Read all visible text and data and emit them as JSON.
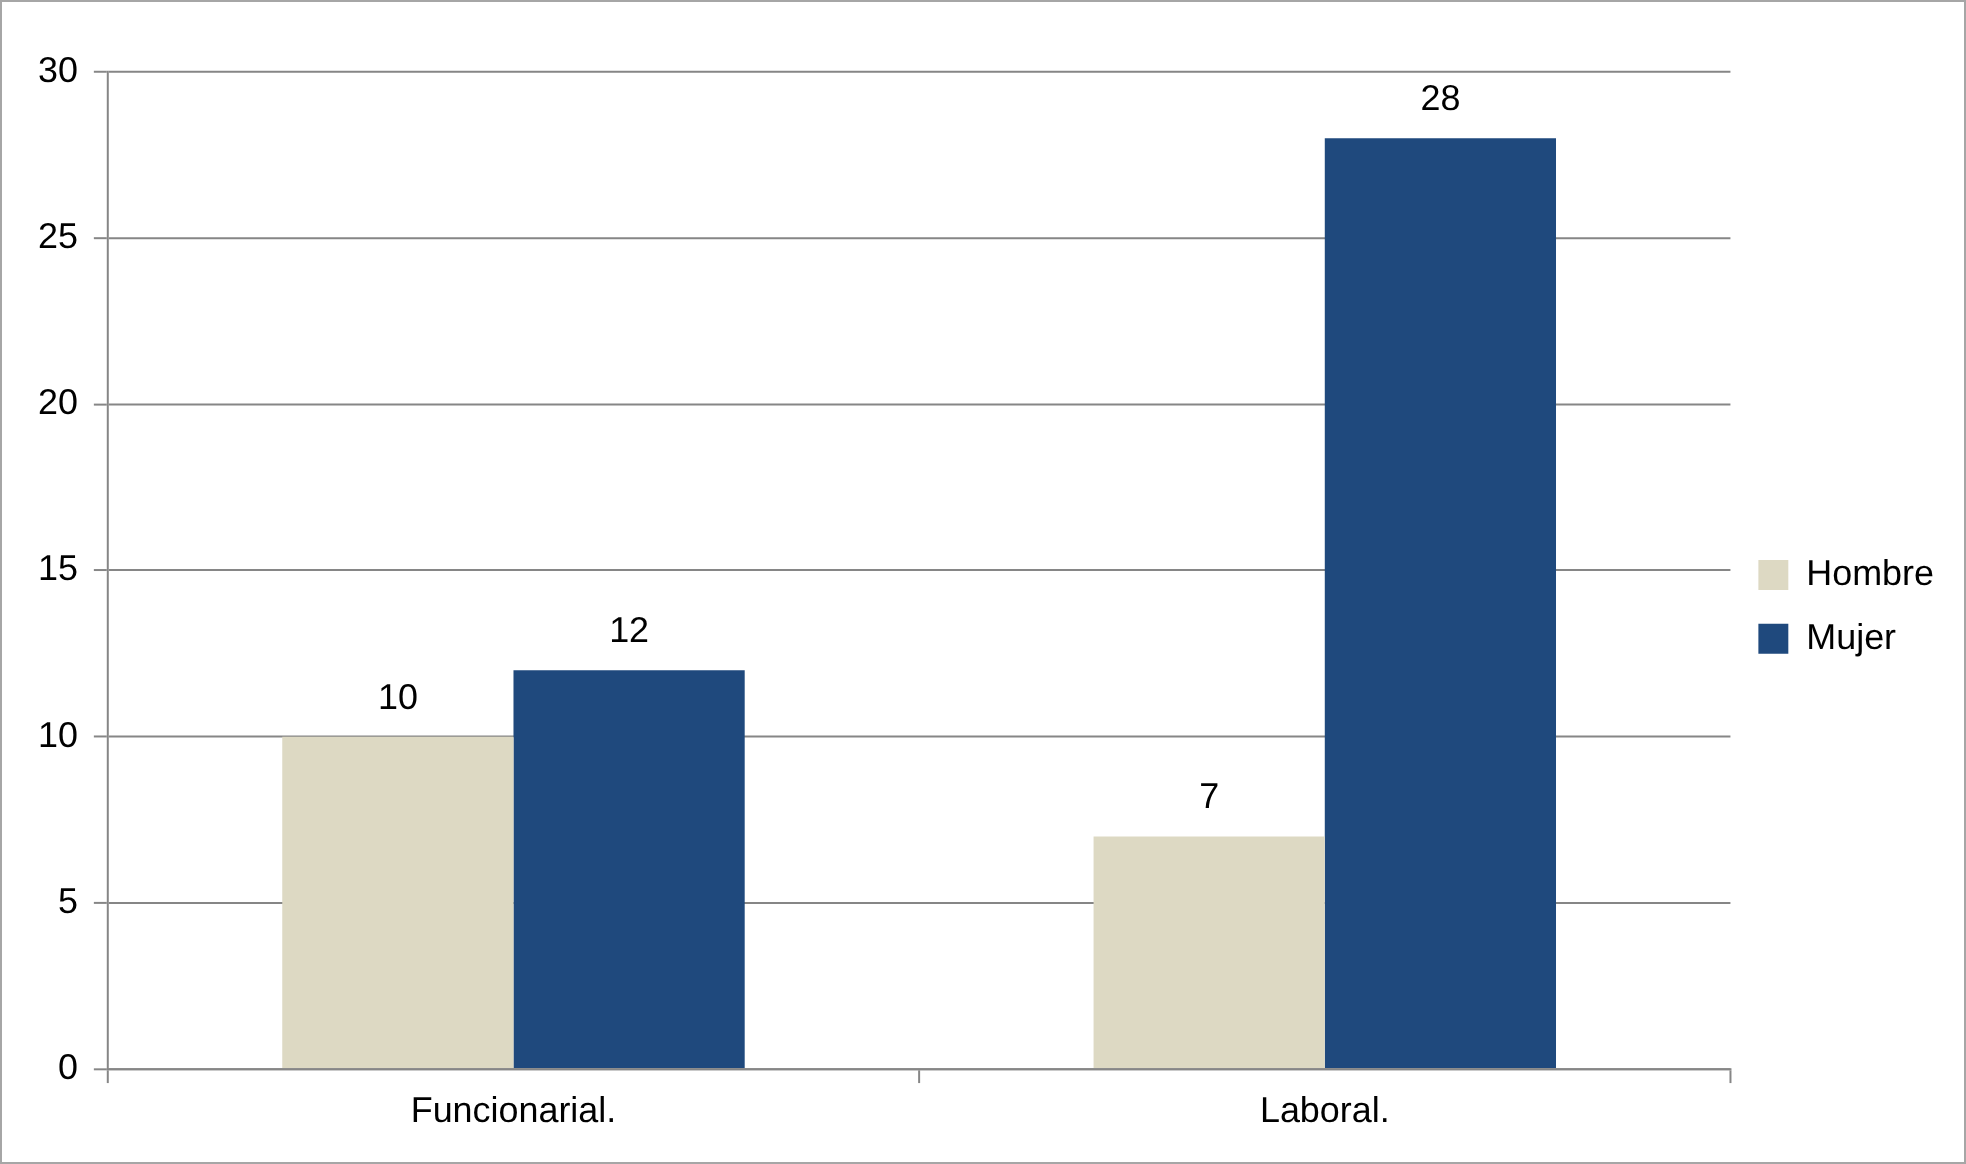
{
  "chart_data": {
    "type": "bar",
    "categories": [
      "Funcionarial.",
      "Laboral."
    ],
    "series": [
      {
        "name": "Hombre",
        "color": "#ddd9c3",
        "values": [
          10,
          7
        ]
      },
      {
        "name": "Mujer",
        "color": "#1f497d",
        "values": [
          12,
          28
        ]
      }
    ],
    "ylim": [
      0,
      30
    ],
    "yticks": [
      0,
      5,
      10,
      15,
      20,
      25,
      30
    ],
    "grid": "y",
    "legend": "right",
    "data_labels": true
  }
}
